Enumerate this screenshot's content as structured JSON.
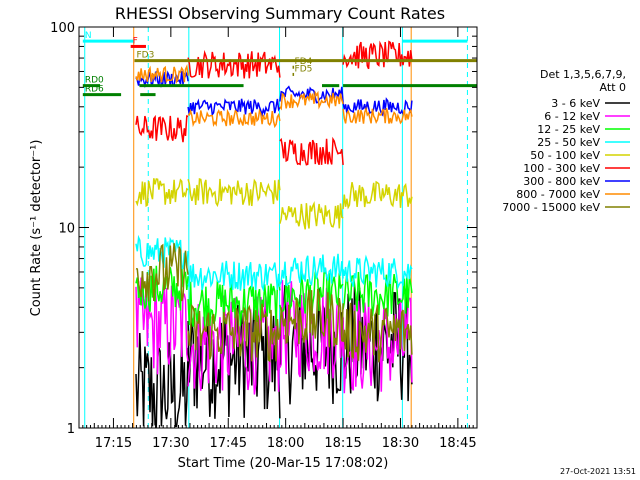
{
  "chart_data": {
    "type": "line",
    "title": "RHESSI Observing Summary Count Rates",
    "xlabel": "Start Time (20-Mar-15 17:08:02)",
    "ylabel": "Count Rate (s⁻¹ detector⁻¹)",
    "ylog": true,
    "ylim": [
      1,
      100
    ],
    "xlim_minutes": [
      -2.0,
      102.0
    ],
    "x_ticks": [
      {
        "t": 7,
        "label": "17:15"
      },
      {
        "t": 22,
        "label": "17:30"
      },
      {
        "t": 37,
        "label": "17:45"
      },
      {
        "t": 52,
        "label": "18:00"
      },
      {
        "t": 67,
        "label": "18:15"
      },
      {
        "t": 82,
        "label": "18:30"
      },
      {
        "t": 97,
        "label": "18:45"
      }
    ],
    "y_ticks": [
      {
        "v": 1,
        "label": "1"
      },
      {
        "v": 10,
        "label": "10"
      },
      {
        "v": 100,
        "label": "100"
      }
    ],
    "legend_header": [
      "Det 1,3,5,6,7,9,",
      "Att 0"
    ],
    "legend_position": "right",
    "grid": false,
    "timestamp": "27-Oct-2021 13:51",
    "intervals": [
      [
        12.9,
        26.5
      ],
      [
        26.5,
        50.5
      ],
      [
        50.5,
        67.0
      ],
      [
        67.0,
        85.0
      ]
    ],
    "series": [
      {
        "name": "3 - 6 keV",
        "color": "#000000",
        "noise": 0.3,
        "values": [
          1.5,
          2.2,
          2.6,
          2.6
        ]
      },
      {
        "name": "6 - 12 keV",
        "color": "#ff00ff",
        "noise": 0.25,
        "values": [
          3.2,
          2.6,
          3.1,
          2.6
        ]
      },
      {
        "name": "12 - 25 keV",
        "color": "#00ff00",
        "noise": 0.12,
        "values": [
          5.0,
          4.2,
          4.6,
          4.6
        ]
      },
      {
        "name": "25 - 50 keV",
        "color": "#00ffff",
        "noise": 0.08,
        "values": [
          7.5,
          5.8,
          6.2,
          6.0
        ]
      },
      {
        "name": "50 - 100 keV",
        "color": "#d4d400",
        "noise": 0.07,
        "values": [
          15.0,
          15.0,
          11.5,
          14.5
        ]
      },
      {
        "name": "100 - 300 keV",
        "color": "#ff0000",
        "noise": 0.07,
        "values": [
          31.0,
          65.0,
          24.0,
          72.0
        ]
      },
      {
        "name": "300 - 800 keV",
        "color": "#0000ff",
        "noise": 0.04,
        "values": [
          55.0,
          40.0,
          46.0,
          40.0
        ]
      },
      {
        "name": "800 - 7000 keV",
        "color": "#ff8c00",
        "noise": 0.04,
        "values": [
          58.0,
          35.0,
          43.0,
          36.0
        ]
      },
      {
        "name": "7000 - 15000 keV",
        "color": "#808000",
        "noise": 0.15,
        "values": [
          6.0,
          3.0,
          3.5,
          3.0
        ]
      }
    ],
    "flag_bars": [
      {
        "label": "N",
        "color": "#00ffff",
        "y": 85,
        "spans": [
          [
            -1.0,
            12.2
          ],
          [
            82.5,
            99.5
          ]
        ]
      },
      {
        "label": "F",
        "color": "#ff0000",
        "y": 80,
        "spans": [
          [
            11.5,
            15.5
          ]
        ]
      },
      {
        "label": "FD3",
        "color": "#808000",
        "y": 68,
        "spans": [
          [
            12.5,
            102.0
          ]
        ]
      },
      {
        "label": "RD0",
        "color": "#008000",
        "y": 51,
        "spans": [
          [
            -1.0,
            3.5
          ],
          [
            13.8,
            41.0
          ],
          [
            61.5,
            66.0
          ],
          [
            67.0,
            102.0
          ]
        ]
      },
      {
        "label": "RD6",
        "color": "#008000",
        "y": 46,
        "spans": [
          [
            -1.0,
            9.0
          ],
          [
            14.0,
            18.0
          ]
        ]
      },
      {
        "label": "FD4",
        "color": "#808000",
        "y": 63,
        "spans": [
          [
            53.8,
            54.2
          ]
        ]
      },
      {
        "label": "FD5",
        "color": "#808000",
        "y": 58,
        "spans": [
          [
            53.8,
            54.2
          ]
        ]
      }
    ],
    "vlines": [
      {
        "t": -0.5,
        "color": "#00ffff",
        "dashed": false
      },
      {
        "t": 12.3,
        "color": "#ff8c00",
        "dashed": false
      },
      {
        "t": 16.1,
        "color": "#00ffff",
        "dashed": true
      },
      {
        "t": 26.7,
        "color": "#00ffff",
        "dashed": false
      },
      {
        "t": 50.4,
        "color": "#00ffff",
        "dashed": false
      },
      {
        "t": 66.9,
        "color": "#00ffff",
        "dashed": false
      },
      {
        "t": 82.5,
        "color": "#00ffff",
        "dashed": false
      },
      {
        "t": 84.8,
        "color": "#ff8c00",
        "dashed": false
      },
      {
        "t": 99.5,
        "color": "#00ffff",
        "dashed": true
      }
    ]
  }
}
